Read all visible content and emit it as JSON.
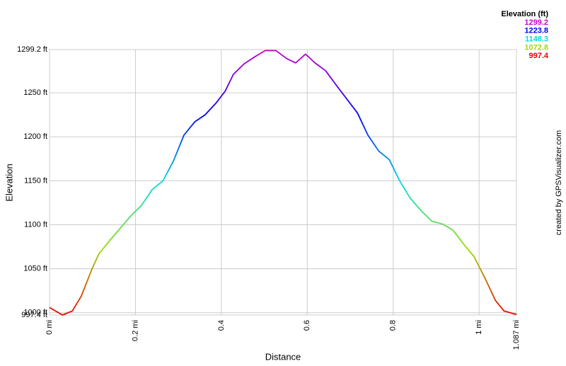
{
  "chart_data": {
    "type": "line",
    "x_label": "Distance",
    "y_label": "Elevation",
    "credit": "created by GPSVisualizer.com",
    "legend_title": "Elevation (ft)",
    "color_scale": [
      {
        "value": 1299.2,
        "color": "#cc00cc"
      },
      {
        "value": 1223.8,
        "color": "#0000ee"
      },
      {
        "value": 1148.3,
        "color": "#00dddd"
      },
      {
        "value": 1072.8,
        "color": "#99dd00"
      },
      {
        "value": 997.4,
        "color": "#ee0000"
      }
    ],
    "x": [
      0,
      0.03,
      0.053,
      0.074,
      0.099,
      0.115,
      0.14,
      0.168,
      0.189,
      0.214,
      0.239,
      0.264,
      0.288,
      0.313,
      0.338,
      0.362,
      0.387,
      0.409,
      0.428,
      0.453,
      0.478,
      0.502,
      0.527,
      0.552,
      0.573,
      0.596,
      0.618,
      0.643,
      0.667,
      0.692,
      0.717,
      0.741,
      0.766,
      0.791,
      0.815,
      0.84,
      0.865,
      0.89,
      0.914,
      0.939,
      0.964,
      0.988,
      1.013,
      1.038,
      1.058,
      1.087
    ],
    "values": [
      1006,
      997.4,
      1002,
      1019,
      1050,
      1067,
      1082,
      1098,
      1110,
      1122,
      1140,
      1150,
      1172,
      1202,
      1217,
      1225,
      1238,
      1252,
      1271,
      1283,
      1291,
      1298,
      1298,
      1289,
      1284,
      1294,
      1284,
      1275,
      1259,
      1243,
      1227,
      1202,
      1184,
      1174,
      1150,
      1130,
      1116,
      1104,
      1101,
      1094,
      1078,
      1064,
      1040,
      1014,
      1002,
      998
    ],
    "xlim": [
      0,
      1.087
    ],
    "ylim": [
      997.4,
      1299.2
    ],
    "xticks": [
      {
        "value": 0,
        "label": "0 mi"
      },
      {
        "value": 0.2,
        "label": "0.2 mi"
      },
      0.4,
      0.6,
      0.8,
      {
        "value": 1,
        "label": "1 mi"
      },
      {
        "value": 1.087,
        "label": "1.087 mi"
      }
    ],
    "yticks": [
      {
        "value": 997.4,
        "label": "997.4 ft"
      },
      {
        "value": 1000,
        "label": "1000 ft"
      },
      {
        "value": 1050,
        "label": "1050 ft"
      },
      {
        "value": 1100,
        "label": "1100 ft"
      },
      {
        "value": 1150,
        "label": "1150 ft"
      },
      {
        "value": 1200,
        "label": "1200 ft"
      },
      {
        "value": 1250,
        "label": "1250 ft"
      },
      {
        "value": 1299.2,
        "label": "1299.2 ft"
      }
    ],
    "grid": true
  }
}
